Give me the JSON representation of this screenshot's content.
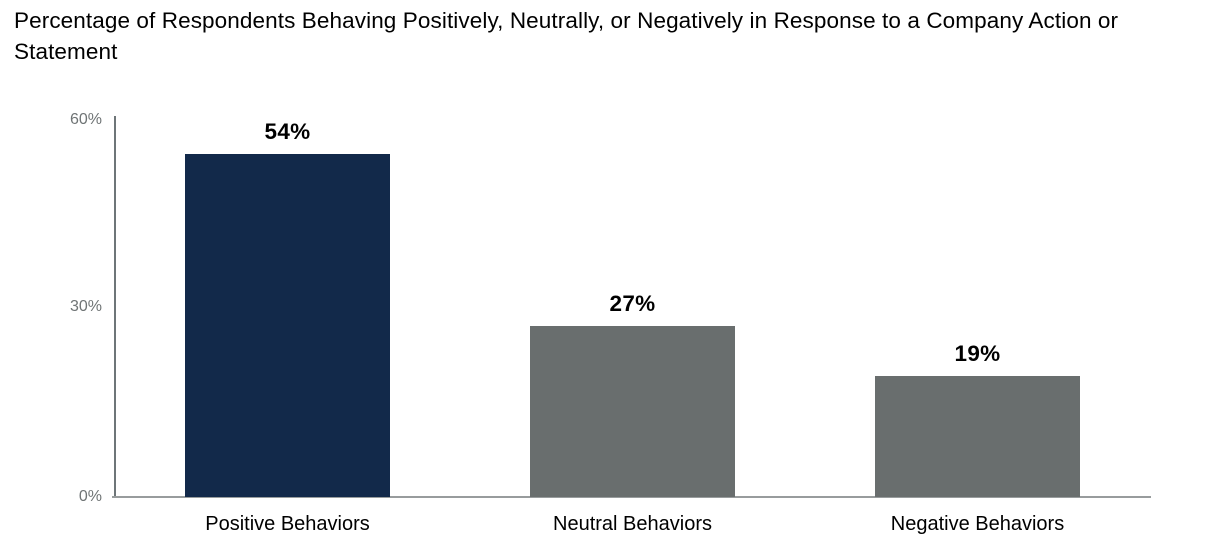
{
  "title": "Percentage of Respondents Behaving Positively, Neutrally, or Negatively in Response to a Company Action or Statement",
  "chart_data": {
    "type": "bar",
    "title": "Percentage of Respondents Behaving Positively, Neutrally, or Negatively in Response to a Company Action or Statement",
    "categories": [
      "Positive Behaviors",
      "Neutral Behaviors",
      "Negative Behaviors"
    ],
    "values": [
      54,
      27,
      19
    ],
    "value_labels": [
      "54%",
      "27%",
      "19%"
    ],
    "xlabel": "",
    "ylabel": "",
    "ylim": [
      0,
      60
    ],
    "yticks": [
      {
        "value": 60,
        "label": "60%"
      },
      {
        "value": 30,
        "label": "30%"
      },
      {
        "value": 0,
        "label": "0%"
      }
    ],
    "grid": false,
    "legend": false,
    "bar_colors": [
      "#12294a",
      "#696e6e",
      "#696e6e"
    ],
    "colors": {
      "positive_bar": "#12294a",
      "neutral_bar": "#696e6e",
      "negative_bar": "#696e6e",
      "y_axis_line": "#6e7578",
      "x_axis_line": "#989c9d",
      "tick_text": "#6f7475",
      "value_label_text": "#000000",
      "category_label_text": "#000000",
      "background": "#ffffff"
    }
  }
}
